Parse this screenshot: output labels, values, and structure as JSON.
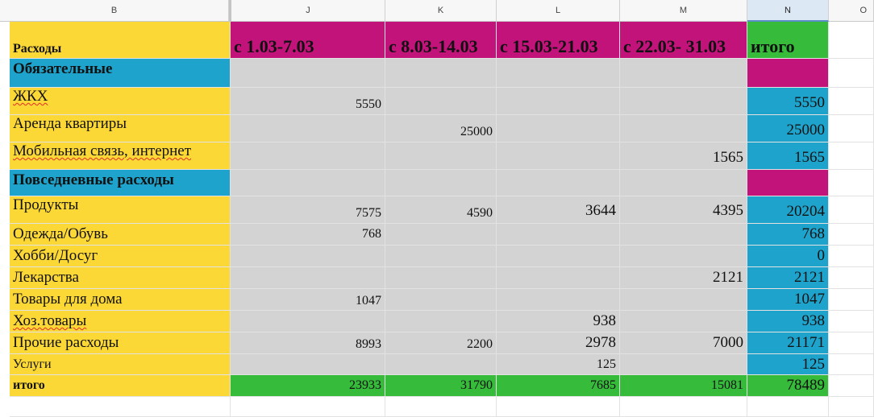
{
  "columns": [
    "B",
    "J",
    "K",
    "L",
    "M",
    "N",
    "O"
  ],
  "header_row": {
    "label": "Расходы",
    "periods": [
      "с 1.03-7.03",
      "с 8.03-14.03",
      "с 15.03-21.03",
      "с 22.03- 31.03"
    ],
    "total_label": "итого"
  },
  "sections": {
    "mandatory": "Обязательные",
    "daily": "Повседневные расходы"
  },
  "rows": [
    {
      "label": "ЖКХ",
      "j": "5550",
      "k": "",
      "l": "",
      "m": "",
      "n": "5550"
    },
    {
      "label": "Аренда квартиры",
      "j": "",
      "k": "25000",
      "l": "",
      "m": "",
      "n": "25000"
    },
    {
      "label": "Мобильная связь, интернет",
      "j": "",
      "k": "",
      "l": "",
      "m": "1565",
      "n": "1565"
    },
    {
      "label": "Продукты",
      "j": "7575",
      "k": "4590",
      "l": "3644",
      "m": "4395",
      "n": "20204"
    },
    {
      "label": "Одежда/Обувь",
      "j": "768",
      "k": "",
      "l": "",
      "m": "",
      "n": "768"
    },
    {
      "label": "Хобби/Досуг",
      "j": "",
      "k": "",
      "l": "",
      "m": "",
      "n": "0"
    },
    {
      "label": "Лекарства",
      "j": "",
      "k": "",
      "l": "",
      "m": "2121",
      "n": "2121"
    },
    {
      "label": "Товары для дома",
      "j": "1047",
      "k": "",
      "l": "",
      "m": "",
      "n": "1047"
    },
    {
      "label": "Хоз.товары",
      "j": "",
      "k": "",
      "l": "938",
      "m": "",
      "n": "938"
    },
    {
      "label": "Прочие расходы",
      "j": "8993",
      "k": "2200",
      "l": "2978",
      "m": "7000",
      "n": "21171"
    },
    {
      "label": "Услуги",
      "j": "",
      "k": "",
      "l": "125",
      "m": "",
      "n": "125"
    }
  ],
  "totals": {
    "label": "итого",
    "j": "23933",
    "k": "31790",
    "l": "7685",
    "m": "15081",
    "n": "78489"
  },
  "colors": {
    "yellow": "#fcd836",
    "magenta": "#c2137a",
    "green": "#36bb3b",
    "blue": "#1ea4cc",
    "gray": "#d3d3d3",
    "selected_header": "#dde8f5"
  }
}
